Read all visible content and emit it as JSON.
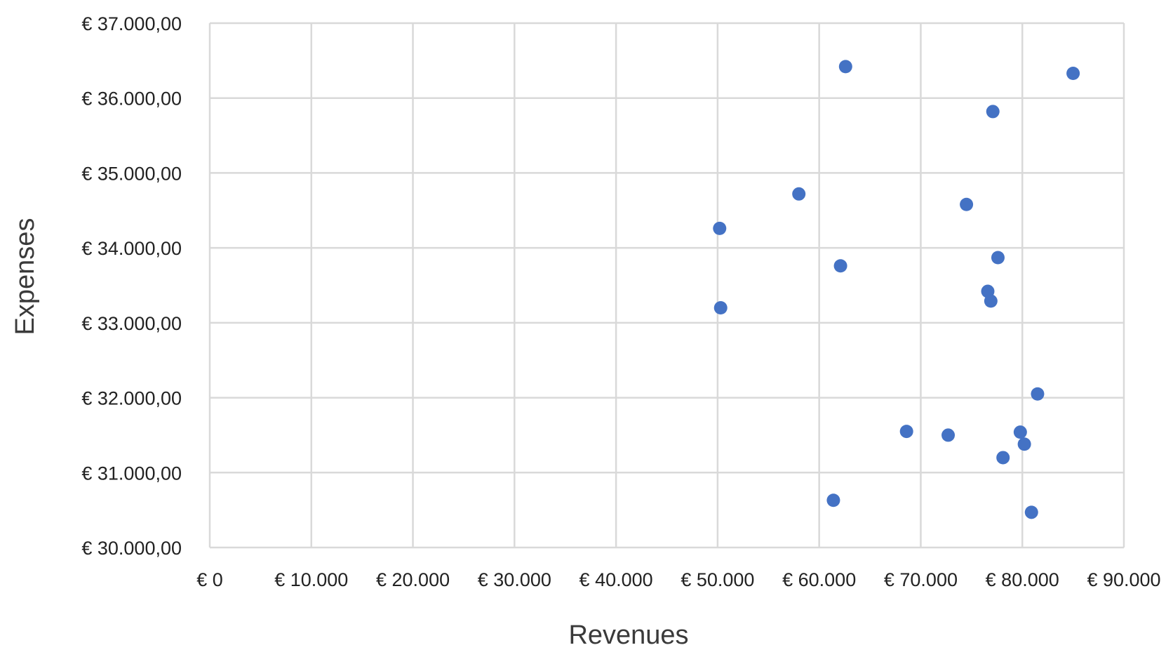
{
  "chart_data": {
    "type": "scatter",
    "title": "",
    "xlabel": "Revenues",
    "ylabel": "Expenses",
    "xlim": [
      0,
      90000
    ],
    "ylim": [
      30000,
      37000
    ],
    "x_ticks": [
      0,
      10000,
      20000,
      30000,
      40000,
      50000,
      60000,
      70000,
      80000,
      90000
    ],
    "x_tick_labels": [
      "€ 0",
      "€ 10.000",
      "€ 20.000",
      "€ 30.000",
      "€ 40.000",
      "€ 50.000",
      "€ 60.000",
      "€ 70.000",
      "€ 80.000",
      "€ 90.000"
    ],
    "y_ticks": [
      30000,
      31000,
      32000,
      33000,
      34000,
      35000,
      36000,
      37000
    ],
    "y_tick_labels": [
      "€ 30.000,00",
      "€ 31.000,00",
      "€ 32.000,00",
      "€ 33.000,00",
      "€ 34.000,00",
      "€ 35.000,00",
      "€ 36.000,00",
      "€ 37.000,00"
    ],
    "grid": true,
    "marker_color": "#4472c4",
    "series": [
      {
        "points": [
          {
            "x": 62600,
            "y": 36420
          },
          {
            "x": 85000,
            "y": 36330
          },
          {
            "x": 77100,
            "y": 35820
          },
          {
            "x": 58000,
            "y": 34720
          },
          {
            "x": 74500,
            "y": 34580
          },
          {
            "x": 50200,
            "y": 34260
          },
          {
            "x": 77600,
            "y": 33870
          },
          {
            "x": 62100,
            "y": 33760
          },
          {
            "x": 76600,
            "y": 33420
          },
          {
            "x": 76900,
            "y": 33290
          },
          {
            "x": 50300,
            "y": 33200
          },
          {
            "x": 81500,
            "y": 32050
          },
          {
            "x": 68600,
            "y": 31550
          },
          {
            "x": 72700,
            "y": 31500
          },
          {
            "x": 79800,
            "y": 31540
          },
          {
            "x": 80200,
            "y": 31380
          },
          {
            "x": 78100,
            "y": 31200
          },
          {
            "x": 61400,
            "y": 30630
          },
          {
            "x": 80900,
            "y": 30470
          }
        ]
      }
    ]
  }
}
